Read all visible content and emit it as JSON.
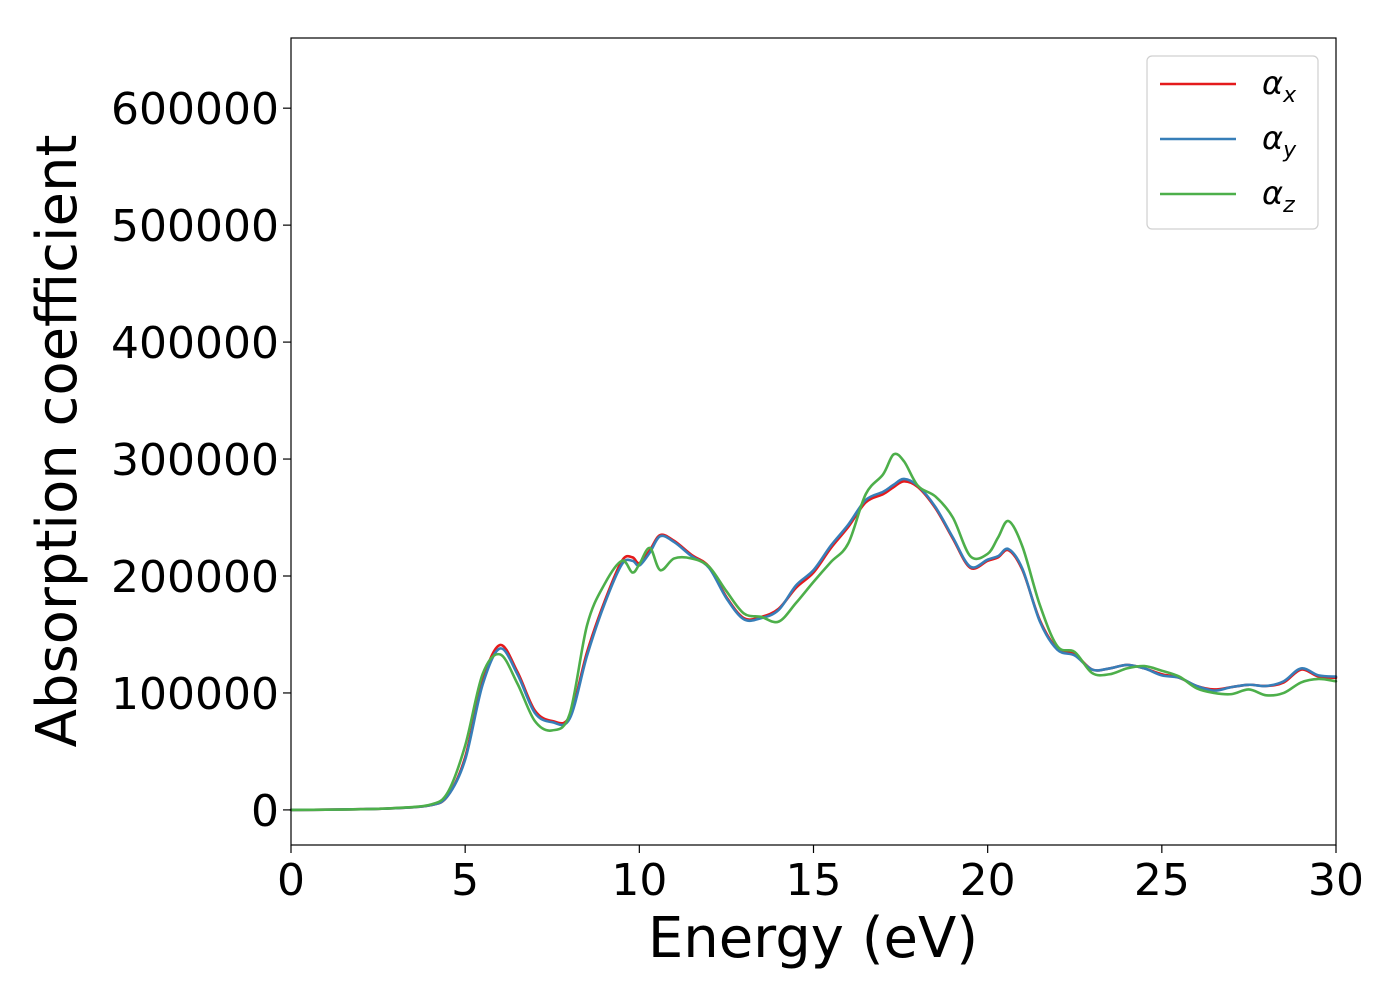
{
  "chart_data": {
    "type": "line",
    "xlabel": "Energy (eV)",
    "ylabel": "Absorption coefficient",
    "xlim": [
      0,
      30
    ],
    "ylim": [
      -30000,
      660000
    ],
    "xticks": [
      "0",
      "5",
      "10",
      "15",
      "20",
      "25",
      "30"
    ],
    "yticks": [
      "0",
      "100000",
      "200000",
      "300000",
      "400000",
      "500000",
      "600000"
    ],
    "grid": false,
    "legend_position": "top-right",
    "x": [
      0,
      1,
      2,
      3,
      4,
      4.5,
      5,
      5.5,
      6,
      6.5,
      7,
      7.5,
      8,
      8.5,
      9,
      9.5,
      9.8,
      10,
      10.3,
      10.6,
      11,
      11.5,
      12,
      12.5,
      13,
      13.5,
      14,
      14.5,
      15,
      15.5,
      16,
      16.5,
      17,
      17.3,
      17.6,
      18,
      18.5,
      19,
      19.5,
      20,
      20.3,
      20.6,
      21,
      21.5,
      22,
      22.5,
      23,
      23.5,
      24,
      24.5,
      25,
      25.5,
      26,
      26.5,
      27,
      27.5,
      28,
      28.5,
      29,
      29.5,
      30
    ],
    "series": [
      {
        "name": "α",
        "subscript": "x",
        "color": "#e41a1c",
        "values": [
          0,
          200,
          600,
          1500,
          4000,
          12000,
          45000,
          110000,
          141000,
          118000,
          85000,
          76000,
          80000,
          135000,
          178000,
          213000,
          216000,
          211000,
          222000,
          235000,
          230000,
          218000,
          208000,
          182000,
          164000,
          165000,
          172000,
          190000,
          203000,
          224000,
          242000,
          263000,
          270000,
          276000,
          281000,
          276000,
          258000,
          232000,
          207000,
          213000,
          216000,
          222000,
          205000,
          162000,
          138000,
          133000,
          120000,
          121000,
          124000,
          121000,
          116000,
          113000,
          106000,
          103000,
          105000,
          107000,
          106000,
          109000,
          120000,
          114000,
          113000
        ]
      },
      {
        "name": "α",
        "subscript": "y",
        "color": "#377eb8",
        "values": [
          0,
          200,
          600,
          1500,
          4000,
          12000,
          43000,
          107000,
          138000,
          116000,
          83000,
          75000,
          78000,
          132000,
          176000,
          210000,
          213000,
          209000,
          220000,
          234000,
          229000,
          217000,
          207000,
          181000,
          163000,
          164000,
          171000,
          192000,
          205000,
          226000,
          244000,
          265000,
          272000,
          278000,
          283000,
          277000,
          259000,
          233000,
          208000,
          214000,
          217000,
          223000,
          206000,
          161000,
          137000,
          132000,
          120000,
          121000,
          124000,
          121000,
          115000,
          113000,
          106000,
          102000,
          105000,
          107000,
          106000,
          110000,
          121000,
          115000,
          114000
        ]
      },
      {
        "name": "α",
        "subscript": "z",
        "color": "#4daf4a",
        "values": [
          0,
          200,
          600,
          1600,
          4500,
          15000,
          55000,
          116000,
          133000,
          108000,
          76000,
          68000,
          82000,
          158000,
          193000,
          213000,
          203000,
          210000,
          224000,
          205000,
          215000,
          215000,
          208000,
          187000,
          168000,
          165000,
          161000,
          177000,
          195000,
          212000,
          228000,
          270000,
          287000,
          304000,
          298000,
          277000,
          268000,
          250000,
          217000,
          219000,
          233000,
          247000,
          225000,
          175000,
          140000,
          135000,
          117000,
          116000,
          121000,
          123000,
          119000,
          114000,
          104000,
          100000,
          99000,
          103000,
          98000,
          100000,
          109000,
          112000,
          110000
        ]
      }
    ]
  }
}
